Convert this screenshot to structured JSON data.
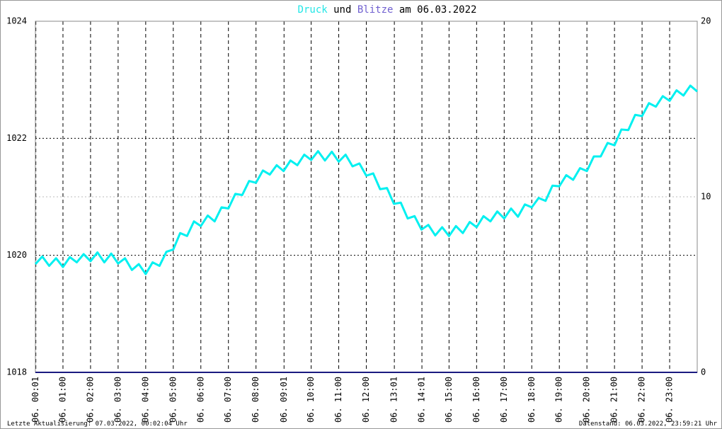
{
  "chart_data": {
    "type": "line",
    "title_parts": [
      {
        "text": "Druck",
        "color": "#22e6e6"
      },
      {
        "text": "und",
        "color": "#000000"
      },
      {
        "text": "Blitze",
        "color": "#7060d0"
      },
      {
        "text": "am 06.03.2022",
        "color": "#000000"
      }
    ],
    "x": [
      0,
      0.25,
      0.5,
      0.75,
      1,
      1.25,
      1.5,
      1.75,
      2,
      2.25,
      2.5,
      2.75,
      3,
      3.25,
      3.5,
      3.75,
      4,
      4.25,
      4.5,
      4.75,
      5,
      5.25,
      5.5,
      5.75,
      6,
      6.25,
      6.5,
      6.75,
      7,
      7.25,
      7.5,
      7.75,
      8,
      8.25,
      8.5,
      8.75,
      9,
      9.25,
      9.5,
      9.75,
      10,
      10.25,
      10.5,
      10.75,
      11,
      11.25,
      11.5,
      11.75,
      12,
      12.25,
      12.5,
      12.75,
      13,
      13.25,
      13.5,
      13.75,
      14,
      14.25,
      14.5,
      14.75,
      15,
      15.25,
      15.5,
      15.75,
      16,
      16.25,
      16.5,
      16.75,
      17,
      17.25,
      17.5,
      17.75,
      18,
      18.25,
      18.5,
      18.75,
      19,
      19.25,
      19.5,
      19.75,
      20,
      20.25,
      20.5,
      20.75,
      21,
      21.25,
      21.5,
      21.75,
      22,
      22.25,
      22.5,
      22.75,
      23,
      23.25,
      23.5,
      23.75,
      24
    ],
    "series": [
      {
        "name": "Druck",
        "color": "#00f0f0",
        "axis": "y",
        "values": [
          1019.85,
          1019.98,
          1019.82,
          1019.95,
          1019.8,
          1019.97,
          1019.88,
          1020.02,
          1019.9,
          1020.05,
          1019.88,
          1020.03,
          1019.86,
          1019.95,
          1019.75,
          1019.85,
          1019.68,
          1019.88,
          1019.82,
          1020.06,
          1020.1,
          1020.38,
          1020.33,
          1020.58,
          1020.5,
          1020.68,
          1020.58,
          1020.82,
          1020.8,
          1021.05,
          1021.03,
          1021.27,
          1021.24,
          1021.45,
          1021.38,
          1021.54,
          1021.44,
          1021.62,
          1021.54,
          1021.72,
          1021.63,
          1021.78,
          1021.62,
          1021.77,
          1021.6,
          1021.72,
          1021.52,
          1021.57,
          1021.36,
          1021.4,
          1021.13,
          1021.15,
          1020.88,
          1020.9,
          1020.63,
          1020.67,
          1020.44,
          1020.52,
          1020.34,
          1020.48,
          1020.33,
          1020.5,
          1020.38,
          1020.57,
          1020.48,
          1020.67,
          1020.58,
          1020.75,
          1020.63,
          1020.8,
          1020.66,
          1020.87,
          1020.82,
          1020.98,
          1020.93,
          1021.19,
          1021.18,
          1021.37,
          1021.29,
          1021.49,
          1021.44,
          1021.69,
          1021.69,
          1021.92,
          1021.88,
          1022.15,
          1022.14,
          1022.4,
          1022.38,
          1022.6,
          1022.54,
          1022.72,
          1022.64,
          1022.82,
          1022.73,
          1022.9,
          1022.8
        ]
      },
      {
        "name": "Blitze",
        "color": "#1a1a80",
        "axis": "y2",
        "values": [
          0,
          0,
          0,
          0,
          0,
          0,
          0,
          0,
          0,
          0,
          0,
          0,
          0,
          0,
          0,
          0,
          0,
          0,
          0,
          0,
          0,
          0,
          0,
          0,
          0,
          0,
          0,
          0,
          0,
          0,
          0,
          0,
          0,
          0,
          0,
          0,
          0,
          0,
          0,
          0,
          0,
          0,
          0,
          0,
          0,
          0,
          0,
          0,
          0,
          0,
          0,
          0,
          0,
          0,
          0,
          0,
          0,
          0,
          0,
          0,
          0,
          0,
          0,
          0,
          0,
          0,
          0,
          0,
          0,
          0,
          0,
          0,
          0,
          0,
          0,
          0,
          0,
          0,
          0,
          0,
          0,
          0,
          0,
          0,
          0,
          0,
          0,
          0,
          0,
          0,
          0,
          0,
          0,
          0,
          0,
          0,
          0
        ]
      }
    ],
    "xlim": [
      0,
      24
    ],
    "xticks": [
      {
        "value": 0.0167,
        "label": "06. 00:01"
      },
      {
        "value": 1,
        "label": "06. 01:00"
      },
      {
        "value": 2,
        "label": "06. 02:00"
      },
      {
        "value": 3,
        "label": "06. 03:00"
      },
      {
        "value": 4,
        "label": "06. 04:00"
      },
      {
        "value": 5,
        "label": "06. 05:00"
      },
      {
        "value": 6,
        "label": "06. 06:00"
      },
      {
        "value": 7,
        "label": "06. 07:00"
      },
      {
        "value": 8,
        "label": "06. 08:00"
      },
      {
        "value": 9.0167,
        "label": "06. 09:01"
      },
      {
        "value": 10,
        "label": "06. 10:00"
      },
      {
        "value": 11,
        "label": "06. 11:00"
      },
      {
        "value": 12,
        "label": "06. 12:00"
      },
      {
        "value": 13.0167,
        "label": "06. 13:01"
      },
      {
        "value": 14.0167,
        "label": "06. 14:01"
      },
      {
        "value": 15,
        "label": "06. 15:00"
      },
      {
        "value": 16,
        "label": "06. 16:00"
      },
      {
        "value": 17,
        "label": "06. 17:00"
      },
      {
        "value": 18,
        "label": "06. 18:00"
      },
      {
        "value": 19,
        "label": "06. 19:00"
      },
      {
        "value": 20,
        "label": "06. 20:00"
      },
      {
        "value": 21,
        "label": "06. 21:00"
      },
      {
        "value": 22,
        "label": "06. 22:00"
      },
      {
        "value": 23,
        "label": "06. 23:00"
      }
    ],
    "ylim": [
      1018,
      1024
    ],
    "yticks": [
      1018,
      1020,
      1022,
      1024
    ],
    "y2lim": [
      0,
      20
    ],
    "y2ticks": [
      0,
      10,
      20
    ],
    "grid": true,
    "footer_left": "Letzte Aktualisierung: 07.03.2022, 00:02:04 Uhr",
    "footer_right": "Datenstand: 06.03.2022, 23:59:21 Uhr"
  }
}
